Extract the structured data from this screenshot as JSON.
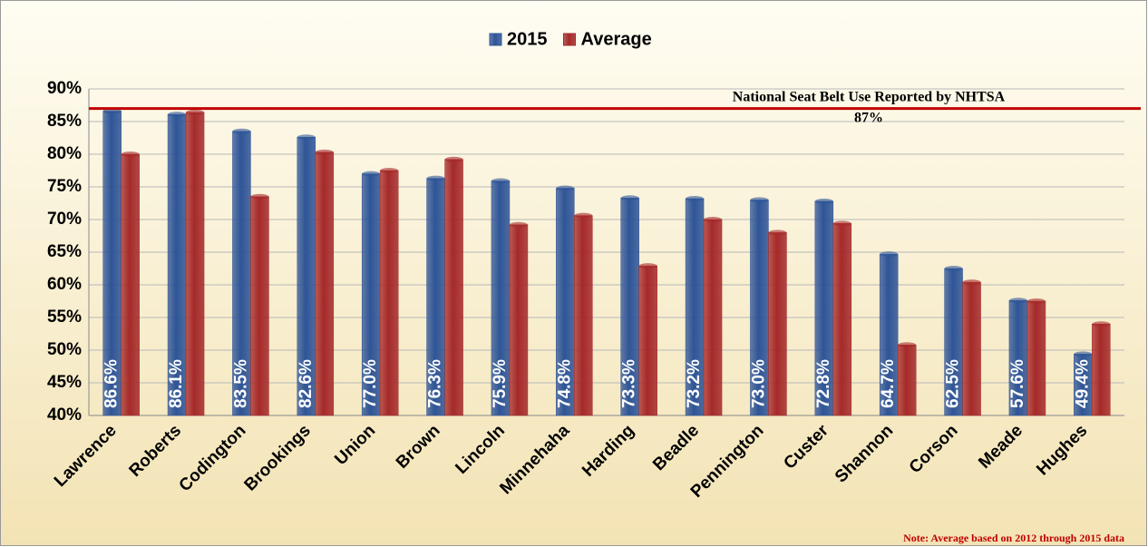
{
  "chart_data": {
    "type": "bar",
    "categories": [
      "Lawrence",
      "Roberts",
      "Codington",
      "Brookings",
      "Union",
      "Brown",
      "Lincoln",
      "Minnehaha",
      "Harding",
      "Beadle",
      "Pennington",
      "Custer",
      "Shannon",
      "Corson",
      "Meade",
      "Hughes"
    ],
    "series": [
      {
        "name": "2015",
        "color": "#2f5597",
        "values": [
          86.6,
          86.1,
          83.5,
          82.6,
          77.0,
          76.3,
          75.9,
          74.8,
          73.3,
          73.2,
          73.0,
          72.8,
          64.7,
          62.5,
          57.6,
          49.4
        ],
        "value_labels": [
          "86.6%",
          "86.1%",
          "83.5%",
          "82.6%",
          "77.0%",
          "76.3%",
          "75.9%",
          "74.8%",
          "73.3%",
          "73.2%",
          "73.0%",
          "72.8%",
          "64.7%",
          "62.5%",
          "57.6%",
          "49.4%"
        ]
      },
      {
        "name": "Average",
        "color": "#a52a2a",
        "values": [
          80.0,
          86.4,
          73.5,
          80.3,
          77.5,
          79.2,
          69.2,
          70.6,
          62.9,
          70.0,
          68.0,
          69.4,
          50.8,
          60.4,
          57.5,
          54.0
        ]
      }
    ],
    "ylim": [
      40,
      90
    ],
    "yticks": [
      {
        "value": 40,
        "label": "40%"
      },
      {
        "value": 45,
        "label": "45%"
      },
      {
        "value": 50,
        "label": "50%"
      },
      {
        "value": 55,
        "label": "55%"
      },
      {
        "value": 60,
        "label": "60%"
      },
      {
        "value": 65,
        "label": "65%"
      },
      {
        "value": 70,
        "label": "70%"
      },
      {
        "value": 75,
        "label": "75%"
      },
      {
        "value": 80,
        "label": "80%"
      },
      {
        "value": 85,
        "label": "85%"
      },
      {
        "value": 90,
        "label": "90%"
      }
    ],
    "grid": true,
    "legend": "top",
    "reference_line": {
      "value": 87,
      "color": "#c00000",
      "label": "National Seat Belt Use Reported by NHTSA",
      "value_label": "87%"
    },
    "note": "Note: Average based on 2012 through 2015 data"
  }
}
